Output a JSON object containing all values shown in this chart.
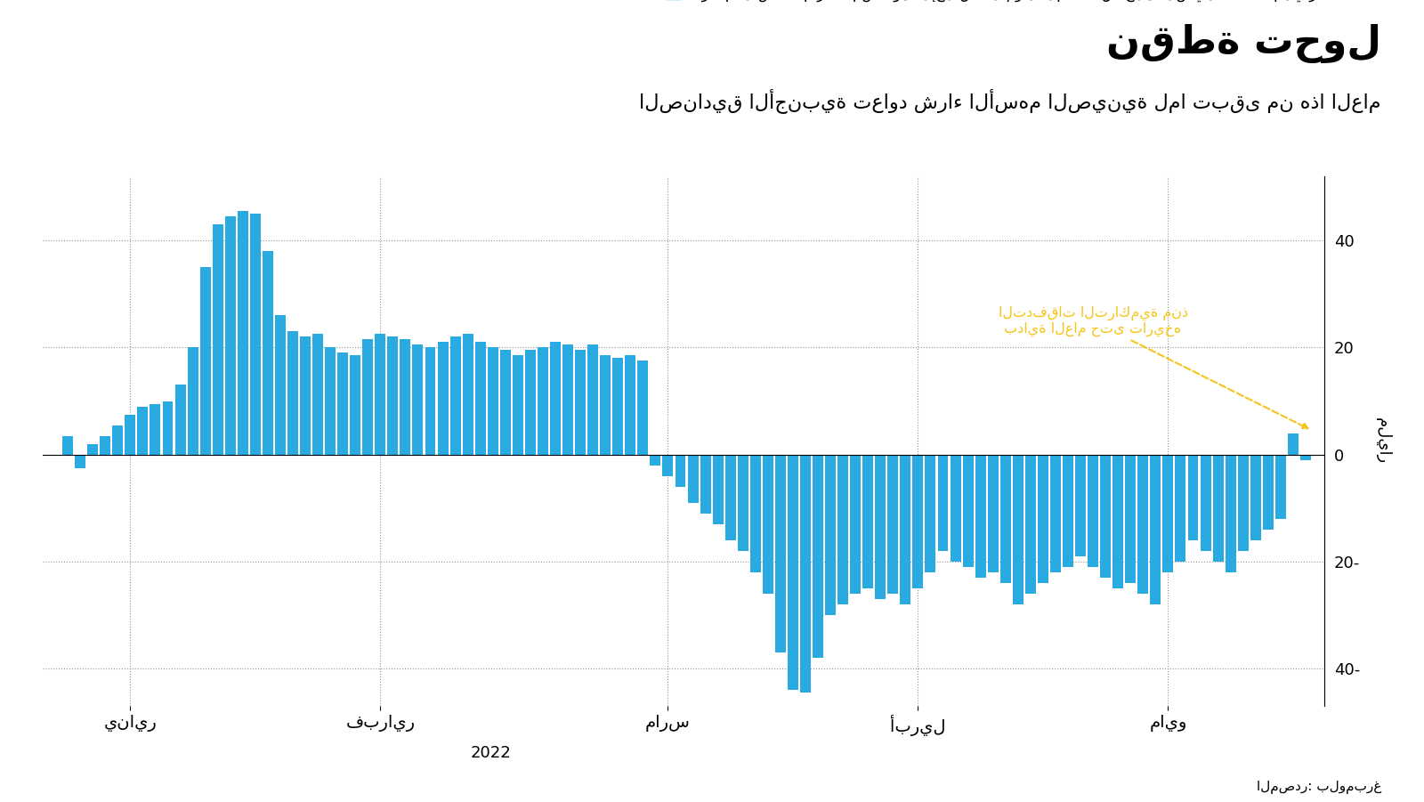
{
  "title": "نقطة تحول",
  "subtitle": "الصناديق الأجنبية تعاود شراء الأسهم الصينية لما تبقى من هذا العام",
  "source": "المصدر: بلومبرغ",
  "ylabel": "مليار",
  "annotation_line1": "التدفقات التراكمية منذ",
  "annotation_line2": "بداية العام حتى تاريخه",
  "xtick_labels": [
    "يناير",
    "فبراير",
    "مارس",
    "أبريل",
    "مايو"
  ],
  "xtick_positions": [
    5,
    25,
    48,
    68,
    88
  ],
  "xlabel_2022": "2022",
  "bar_color": "#29ABE2",
  "annotation_color": "#F5C518",
  "ylim": [
    -47,
    52
  ],
  "yticks": [
    -40,
    -20,
    0,
    20,
    40
  ],
  "background_color": "#FFFFFF",
  "values": [
    3.5,
    -2.5,
    2.0,
    3.5,
    5.5,
    7.5,
    9.0,
    9.5,
    10.0,
    13.0,
    20.0,
    35.0,
    43.0,
    44.5,
    45.5,
    45.0,
    38.0,
    26.0,
    23.0,
    22.0,
    22.5,
    20.0,
    19.0,
    18.5,
    21.5,
    22.5,
    22.0,
    21.5,
    20.5,
    20.0,
    21.0,
    22.0,
    22.5,
    21.0,
    20.0,
    19.5,
    18.5,
    19.5,
    20.0,
    21.0,
    20.5,
    19.5,
    20.5,
    18.5,
    18.0,
    18.5,
    17.5,
    -2.0,
    -4.0,
    -6.0,
    -9.0,
    -11.0,
    -13.0,
    -16.0,
    -18.0,
    -22.0,
    -26.0,
    -37.0,
    -44.0,
    -44.5,
    -38.0,
    -30.0,
    -28.0,
    -26.0,
    -25.0,
    -27.0,
    -26.0,
    -28.0,
    -25.0,
    -22.0,
    -18.0,
    -20.0,
    -21.0,
    -23.0,
    -22.0,
    -24.0,
    -28.0,
    -26.0,
    -24.0,
    -22.0,
    -21.0,
    -19.0,
    -21.0,
    -23.0,
    -25.0,
    -24.0,
    -26.0,
    -28.0,
    -22.0,
    -20.0,
    -16.0,
    -18.0,
    -20.0,
    -22.0,
    -18.0,
    -16.0,
    -14.0,
    -12.0,
    4.0,
    -1.0
  ]
}
